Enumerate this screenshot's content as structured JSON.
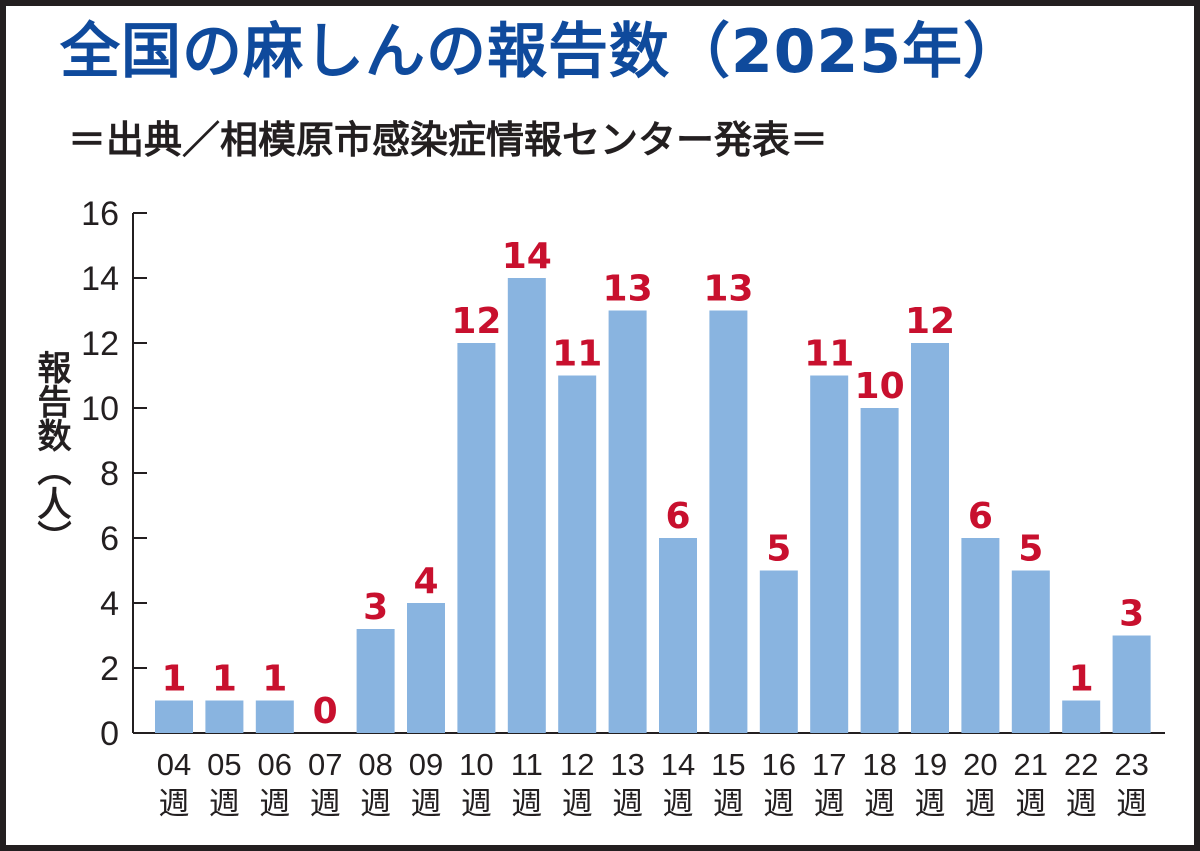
{
  "title": "全国の麻しんの報告数（2025年）",
  "subtitle": "＝出典／相模原市感染症情報センター発表＝",
  "colors": {
    "title": "#0f4a9c",
    "bar": "#89b4e0",
    "value_label": "#c8102e",
    "axis": "#231f20"
  },
  "chart_data": {
    "type": "bar",
    "title": "全国の麻しんの報告数（2025年）",
    "subtitle": "＝出典／相模原市感染症情報センター発表＝",
    "xlabel": "",
    "ylabel": "報告数（人）",
    "ylim": [
      0,
      16
    ],
    "yticks": [
      "0",
      "2",
      "4",
      "6",
      "8",
      "10",
      "12",
      "14",
      "16"
    ],
    "categories": [
      "04",
      "05",
      "06",
      "07",
      "08",
      "09",
      "10",
      "11",
      "12",
      "13",
      "14",
      "15",
      "16",
      "17",
      "18",
      "19",
      "20",
      "21",
      "22",
      "23"
    ],
    "category_suffix": "週",
    "values": [
      1,
      1,
      1,
      0,
      3.2,
      4,
      12,
      14,
      11,
      13,
      6,
      13,
      5,
      11,
      10,
      12,
      6,
      5,
      1,
      3
    ],
    "value_labels": [
      "1",
      "1",
      "1",
      "0",
      "3",
      "4",
      "12",
      "14",
      "11",
      "13",
      "6",
      "13",
      "5",
      "11",
      "10",
      "12",
      "6",
      "5",
      "1",
      "3"
    ],
    "grid": false,
    "legend": "none"
  }
}
